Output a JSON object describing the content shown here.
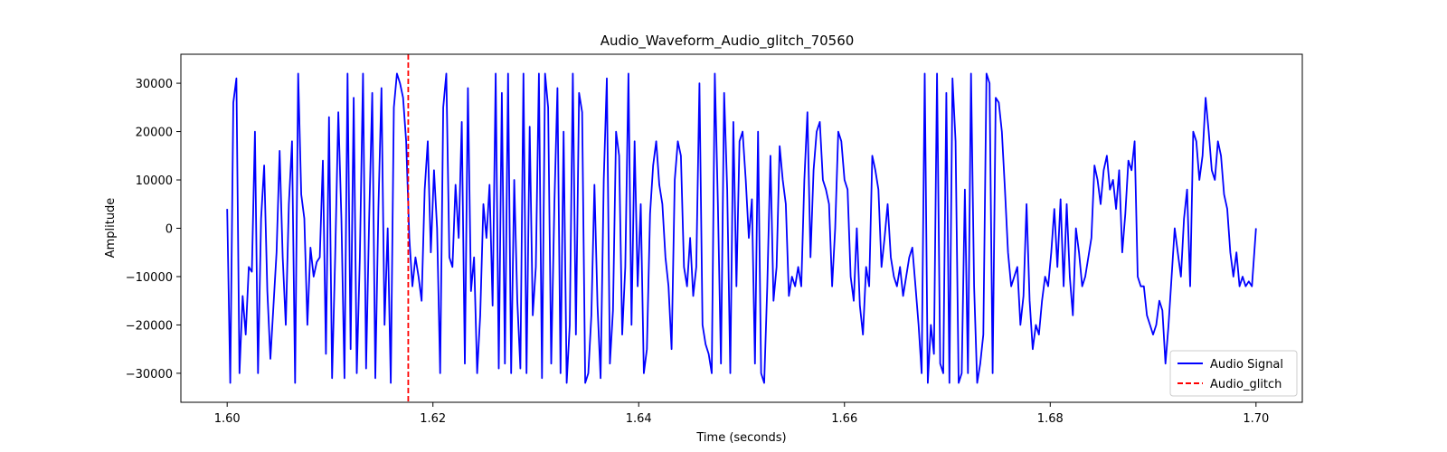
{
  "chart_data": {
    "type": "line",
    "title": "Audio_Waveform_Audio_glitch_70560",
    "xlabel": "Time (seconds)",
    "ylabel": "Amplitude",
    "xlim": [
      1.5955,
      1.7045
    ],
    "ylim": [
      -36000,
      36000
    ],
    "xticks": [
      1.6,
      1.62,
      1.64,
      1.66,
      1.68,
      1.7
    ],
    "xtick_labels": [
      "1.60",
      "1.62",
      "1.64",
      "1.66",
      "1.68",
      "1.70"
    ],
    "yticks": [
      -30000,
      -20000,
      -10000,
      0,
      10000,
      20000,
      30000
    ],
    "ytick_labels": [
      "−30000",
      "−20000",
      "−10000",
      "0",
      "10000",
      "20000",
      "30000"
    ],
    "grid": false,
    "legend_position": "lower-right",
    "series": [
      {
        "name": "Audio Signal",
        "color": "#0000ff",
        "style": "solid",
        "x": [
          1.6,
          1.6003,
          1.6006,
          1.6009,
          1.6012,
          1.6015,
          1.6018,
          1.6021,
          1.6024,
          1.6027,
          1.603,
          1.6033,
          1.6036,
          1.6039,
          1.6042,
          1.6045,
          1.6048,
          1.6051,
          1.6054,
          1.6057,
          1.606,
          1.6063,
          1.6066,
          1.6069,
          1.6072,
          1.6075,
          1.6078,
          1.6081,
          1.6084,
          1.6087,
          1.609,
          1.6093,
          1.6096,
          1.6099,
          1.6102,
          1.6105,
          1.6108,
          1.6111,
          1.6114,
          1.6117,
          1.612,
          1.6123,
          1.6126,
          1.6129,
          1.6132,
          1.6135,
          1.6138,
          1.6141,
          1.6144,
          1.6147,
          1.615,
          1.6153,
          1.6156,
          1.6159,
          1.6162,
          1.6165,
          1.6168,
          1.6171,
          1.6174,
          1.6177,
          1.618,
          1.6183,
          1.6186,
          1.6189,
          1.6192,
          1.6195,
          1.6198,
          1.6201,
          1.6204,
          1.6207,
          1.621,
          1.6213,
          1.6216,
          1.6219,
          1.6222,
          1.6225,
          1.6228,
          1.6231,
          1.6234,
          1.6237,
          1.624,
          1.6243,
          1.6246,
          1.6249,
          1.6252,
          1.6255,
          1.6258,
          1.6261,
          1.6264,
          1.6267,
          1.627,
          1.6273,
          1.6276,
          1.6279,
          1.6282,
          1.6285,
          1.6288,
          1.6291,
          1.6294,
          1.6297,
          1.63,
          1.6303,
          1.6306,
          1.6309,
          1.6312,
          1.6315,
          1.6318,
          1.6321,
          1.6324,
          1.6327,
          1.633,
          1.6333,
          1.6336,
          1.6339,
          1.6342,
          1.6345,
          1.6348,
          1.6351,
          1.6354,
          1.6357,
          1.636,
          1.6363,
          1.6366,
          1.6369,
          1.6372,
          1.6375,
          1.6378,
          1.6381,
          1.6384,
          1.6387,
          1.639,
          1.6393,
          1.6396,
          1.6399,
          1.6402,
          1.6405,
          1.6408,
          1.6411,
          1.6414,
          1.6417,
          1.642,
          1.6423,
          1.6426,
          1.6429,
          1.6432,
          1.6435,
          1.6438,
          1.6441,
          1.6444,
          1.6447,
          1.645,
          1.6453,
          1.6456,
          1.6459,
          1.6462,
          1.6465,
          1.6468,
          1.6471,
          1.6474,
          1.6477,
          1.648,
          1.6483,
          1.6486,
          1.6489,
          1.6492,
          1.6495,
          1.6498,
          1.6501,
          1.6504,
          1.6507,
          1.651,
          1.6513,
          1.6516,
          1.6519,
          1.6522,
          1.6525,
          1.6528,
          1.6531,
          1.6534,
          1.6537,
          1.654,
          1.6543,
          1.6546,
          1.6549,
          1.6552,
          1.6555,
          1.6558,
          1.6561,
          1.6564,
          1.6567,
          1.657,
          1.6573,
          1.6576,
          1.6579,
          1.6582,
          1.6585,
          1.6588,
          1.6591,
          1.6594,
          1.6597,
          1.66,
          1.6603,
          1.6606,
          1.6609,
          1.6612,
          1.6615,
          1.6618,
          1.6621,
          1.6624,
          1.6627,
          1.663,
          1.6633,
          1.6636,
          1.6639,
          1.6642,
          1.6645,
          1.6648,
          1.6651,
          1.6654,
          1.6657,
          1.666,
          1.6663,
          1.6666,
          1.6669,
          1.6672,
          1.6675,
          1.6678,
          1.6681,
          1.6684,
          1.6687,
          1.669,
          1.6693,
          1.6696,
          1.6699,
          1.6702,
          1.6705,
          1.6708,
          1.6711,
          1.6714,
          1.6717,
          1.672,
          1.6723,
          1.6726,
          1.6729,
          1.6732,
          1.6735,
          1.6738,
          1.6741,
          1.6744,
          1.6747,
          1.675,
          1.6753,
          1.6756,
          1.6759,
          1.6762,
          1.6765,
          1.6768,
          1.6771,
          1.6774,
          1.6777,
          1.678,
          1.6783,
          1.6786,
          1.6789,
          1.6792,
          1.6795,
          1.6798,
          1.6801,
          1.6804,
          1.6807,
          1.681,
          1.6813,
          1.6816,
          1.6819,
          1.6822,
          1.6825,
          1.6828,
          1.6831,
          1.6834,
          1.6837,
          1.684,
          1.6843,
          1.6846,
          1.6849,
          1.6852,
          1.6855,
          1.6858,
          1.6861,
          1.6864,
          1.6867,
          1.687,
          1.6873,
          1.6876,
          1.6879,
          1.6882,
          1.6885,
          1.6888,
          1.6891,
          1.6894,
          1.6897,
          1.69,
          1.6903,
          1.6906,
          1.6909,
          1.6912,
          1.6915,
          1.6918,
          1.6921,
          1.6924,
          1.6927,
          1.693,
          1.6933,
          1.6936,
          1.6939,
          1.6942,
          1.6945,
          1.6948,
          1.6951,
          1.6954,
          1.6957,
          1.696,
          1.6963,
          1.6966,
          1.6969,
          1.6972,
          1.6975,
          1.6978,
          1.6981,
          1.6984,
          1.6987,
          1.699,
          1.6993,
          1.6996,
          1.7
        ],
        "y": [
          4000,
          -32000,
          26000,
          31000,
          -30000,
          -14000,
          -22000,
          -8000,
          -9000,
          20000,
          -30000,
          2000,
          13000,
          -13000,
          -27000,
          -16000,
          -5000,
          16000,
          -6000,
          -20000,
          5000,
          18000,
          -32000,
          32000,
          7000,
          2000,
          -20000,
          -4000,
          -10000,
          -7000,
          -6000,
          14000,
          -26000,
          23000,
          -31000,
          -6000,
          24000,
          2000,
          -31000,
          32000,
          -25000,
          27000,
          -30000,
          -6000,
          32000,
          -29000,
          2000,
          28000,
          -31000,
          4000,
          29000,
          -20000,
          0,
          -32000,
          25000,
          32000,
          30000,
          27000,
          18000,
          -2000,
          -12000,
          -6000,
          -10000,
          -15000,
          8000,
          18000,
          -5000,
          12000,
          0,
          -30000,
          25000,
          32000,
          -6000,
          -8000,
          9000,
          -2000,
          22000,
          -28000,
          29000,
          -13000,
          -6000,
          -30000,
          -18000,
          5000,
          -2000,
          9000,
          -16000,
          32000,
          -29000,
          28000,
          -28000,
          32000,
          -30000,
          10000,
          -15000,
          -29000,
          32000,
          -30000,
          21000,
          -18000,
          -8000,
          32000,
          -31000,
          32000,
          25000,
          -28000,
          5000,
          29000,
          -30000,
          20000,
          -32000,
          -20000,
          32000,
          -22000,
          28000,
          24000,
          -32000,
          -30000,
          -18000,
          9000,
          -16000,
          -31000,
          10000,
          31000,
          -28000,
          -17000,
          20000,
          15000,
          -22000,
          -8000,
          32000,
          -20000,
          18000,
          -12000,
          5000,
          -30000,
          -25000,
          3000,
          13000,
          18000,
          9000,
          5000,
          -6000,
          -12000,
          -25000,
          10000,
          18000,
          15000,
          -8000,
          -12000,
          -2000,
          -14000,
          -8000,
          30000,
          -20000,
          -24000,
          -26000,
          -30000,
          32000,
          5000,
          -28000,
          28000,
          8000,
          -30000,
          22000,
          -12000,
          18000,
          20000,
          10000,
          -2000,
          6000,
          -28000,
          20000,
          -30000,
          -32000,
          -12000,
          15000,
          -15000,
          -8000,
          17000,
          10000,
          5000,
          -14000,
          -10000,
          -12000,
          -8000,
          -12000,
          10000,
          24000,
          -6000,
          12000,
          20000,
          22000,
          10000,
          8000,
          5000,
          -12000,
          0,
          20000,
          18000,
          10000,
          8000,
          -10000,
          -15000,
          0,
          -16000,
          -22000,
          -8000,
          -12000,
          15000,
          12000,
          8000,
          -8000,
          -2000,
          5000,
          -6000,
          -10000,
          -12000,
          -8000,
          -14000,
          -10000,
          -6000,
          -4000,
          -12000,
          -20000,
          -30000,
          32000,
          -32000,
          -20000,
          -26000,
          32000,
          -28000,
          -30000,
          28000,
          -32000,
          31000,
          18000,
          -32000,
          -30000,
          8000,
          -30000,
          32000,
          -12000,
          -32000,
          -28000,
          -22000,
          32000,
          30000,
          -30000,
          27000,
          26000,
          20000,
          8000,
          -5000,
          -12000,
          -10000,
          -8000,
          -20000,
          -14000,
          5000,
          -15000,
          -25000,
          -20000,
          -22000,
          -15000,
          -10000,
          -12000,
          -5000,
          4000,
          -8000,
          6000,
          -12000,
          5000,
          -10000,
          -18000,
          0,
          -5000,
          -12000,
          -10000,
          -6000,
          -2000,
          13000,
          10000,
          5000,
          12000,
          15000,
          8000,
          10000,
          4000,
          12000,
          -5000,
          3000,
          14000,
          12000,
          18000,
          -10000,
          -12000,
          -12000,
          -18000,
          -20000,
          -22000,
          -20000,
          -15000,
          -17000,
          -28000,
          -20000,
          -10000,
          0,
          -5000,
          -10000,
          2000,
          8000,
          -12000,
          20000,
          18000,
          10000,
          15000,
          27000,
          20000,
          12000,
          10000,
          18000,
          15000,
          7000,
          4000,
          -5000,
          -10000,
          -5000,
          -12000,
          -10000,
          -12000,
          -11000,
          -12000,
          0
        ]
      },
      {
        "name": "Audio_glitch",
        "color": "#ff0000",
        "style": "dashed",
        "x": 1.6176
      }
    ]
  }
}
